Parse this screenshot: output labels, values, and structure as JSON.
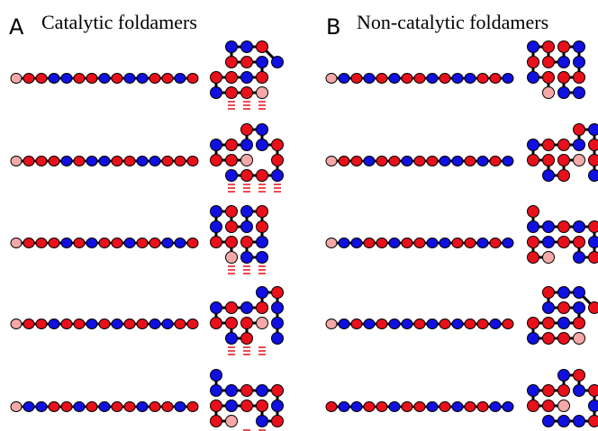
{
  "panels": [
    {
      "letter": "A",
      "title": "Catalytic foldamers"
    },
    {
      "letter": "B",
      "title": "Non-catalytic foldamers"
    }
  ]
}
